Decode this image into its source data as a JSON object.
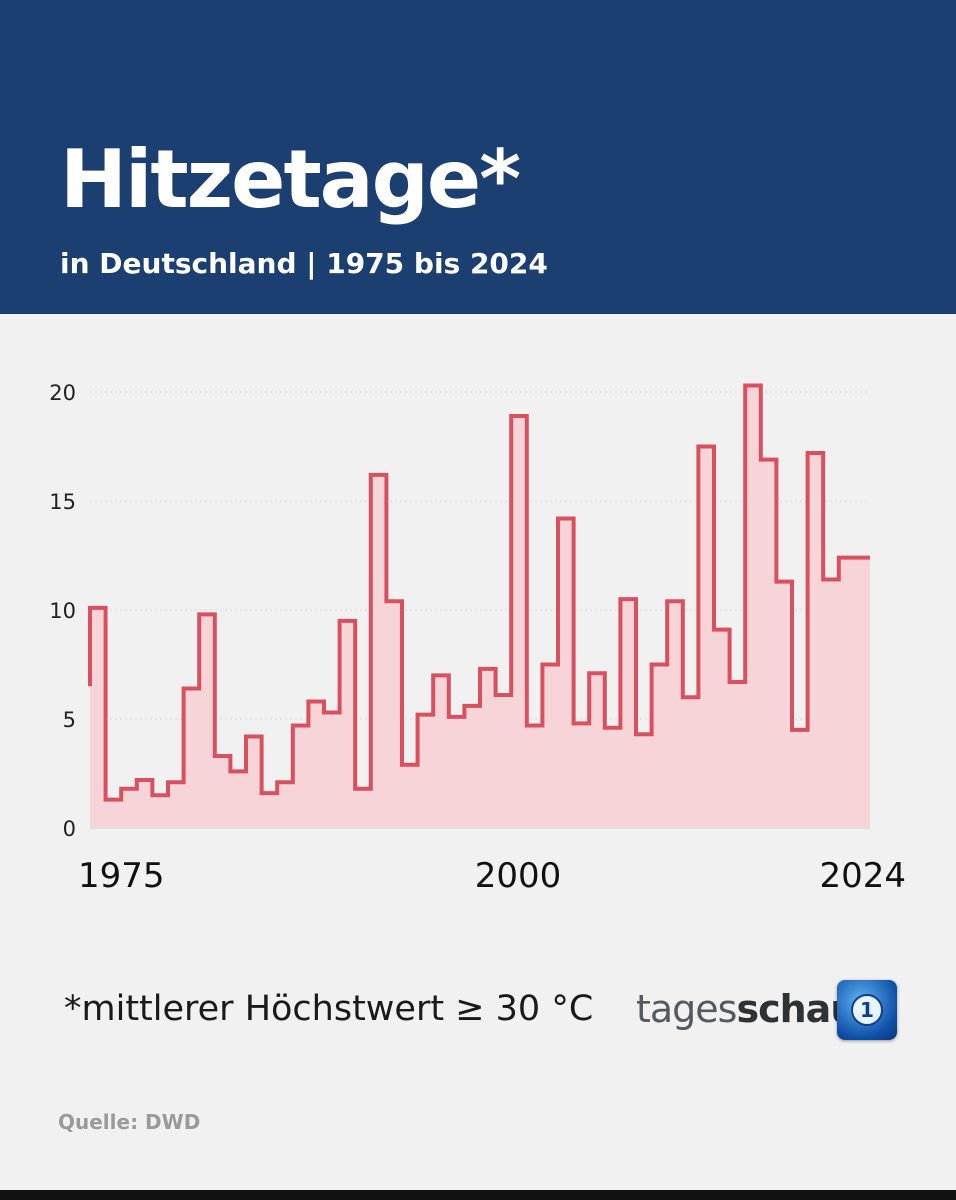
{
  "header": {
    "title": "Hitzetage*",
    "subtitle": "in Deutschland | 1975 bis 2024"
  },
  "footnote": "*mittlerer Höchstwert ≥ 30 °C",
  "brand": {
    "part1": "tages",
    "part2": "schau",
    "logo_glyph": "1"
  },
  "source": "Quelle: DWD",
  "colors": {
    "header_bg": "#1c3f72",
    "line": "#d9505e",
    "fill": "#f7d4d8",
    "background": "#f1f1f1"
  },
  "chart_data": {
    "type": "area",
    "title": "Hitzetage*",
    "subtitle": "in Deutschland | 1975 bis 2024",
    "xlabel": "",
    "ylabel": "",
    "x_ticks": [
      1975,
      2000,
      2024
    ],
    "y_ticks": [
      0,
      5,
      10,
      15,
      20
    ],
    "ylim": [
      0,
      21
    ],
    "grid": "horizontal dotted",
    "step": true,
    "x": [
      1975,
      1976,
      1977,
      1978,
      1979,
      1980,
      1981,
      1982,
      1983,
      1984,
      1985,
      1986,
      1987,
      1988,
      1989,
      1990,
      1991,
      1992,
      1993,
      1994,
      1995,
      1996,
      1997,
      1998,
      1999,
      2000,
      2001,
      2002,
      2003,
      2004,
      2005,
      2006,
      2007,
      2008,
      2009,
      2010,
      2011,
      2012,
      2013,
      2014,
      2015,
      2016,
      2017,
      2018,
      2019,
      2020,
      2021,
      2022,
      2023,
      2024
    ],
    "values": [
      10.1,
      1.3,
      1.8,
      2.2,
      1.5,
      2.1,
      6.4,
      9.8,
      3.3,
      2.6,
      4.2,
      1.6,
      2.1,
      4.7,
      5.8,
      5.3,
      9.5,
      1.8,
      16.2,
      10.4,
      2.9,
      5.2,
      7.0,
      5.1,
      5.6,
      7.3,
      6.1,
      18.9,
      4.7,
      7.5,
      14.2,
      4.8,
      7.1,
      4.6,
      10.5,
      4.3,
      7.5,
      10.4,
      6.0,
      17.5,
      9.1,
      6.7,
      20.3,
      16.9,
      11.3,
      4.5,
      17.2,
      11.4,
      12.4,
      12.4
    ]
  }
}
